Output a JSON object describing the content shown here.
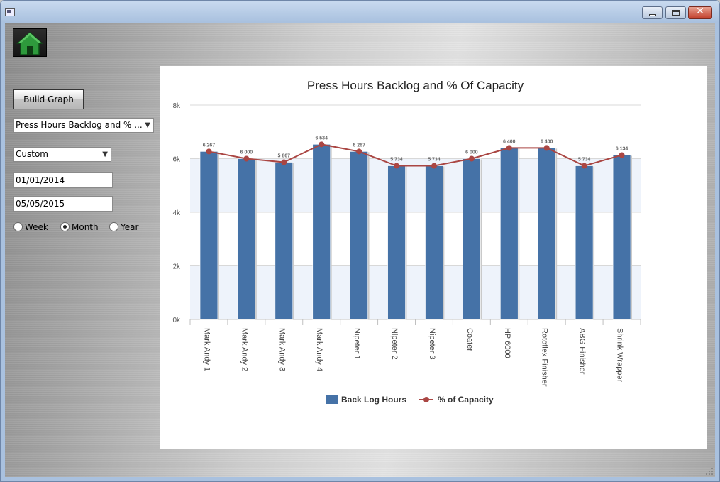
{
  "window": {
    "title": "",
    "controls": {
      "minimize": "minimize-icon",
      "maximize": "maximize-icon",
      "close": "✕"
    }
  },
  "sidebar": {
    "home_icon": "home-icon",
    "build_button_label": "Build Graph",
    "graph_select_value": "Press Hours Backlog and % ...",
    "range_select_value": "Custom",
    "start_date": "01/01/2014",
    "end_date": "05/05/2015",
    "period_options": [
      {
        "label": "Week",
        "selected": false
      },
      {
        "label": "Month",
        "selected": true
      },
      {
        "label": "Year",
        "selected": false
      }
    ]
  },
  "chart_data": {
    "type": "bar",
    "title": "Press Hours Backlog and % Of Capacity",
    "categories": [
      "Mark Andy 1",
      "Mark Andy 2",
      "Mark Andy 3",
      "Mark Andy 4",
      "Nipeter 1",
      "Nipeter 2",
      "Nipeter 3",
      "Coater",
      "HP 6000",
      "Rotoflex Finisher",
      "ABG Finisher",
      "Shrink Wrapper"
    ],
    "ylim": [
      0,
      8000
    ],
    "yticks": [
      0,
      2000,
      4000,
      6000,
      8000
    ],
    "ytick_labels": [
      "0k",
      "2k",
      "4k",
      "6k",
      "8k"
    ],
    "grid": true,
    "series": [
      {
        "name": "Back Log Hours",
        "kind": "bar",
        "color": "#4572a7",
        "values": [
          6267,
          6000,
          5867,
          6534,
          6267,
          5734,
          5734,
          6000,
          6400,
          6400,
          5734,
          6134
        ],
        "value_labels": [
          "6 267",
          "6 000",
          "5 867",
          "6 534",
          "6 267",
          "5 734",
          "5 734",
          "6 000",
          "6 400",
          "6 400",
          "5 734",
          "6 134"
        ]
      },
      {
        "name": "% of Capacity",
        "kind": "line",
        "color": "#aa4643",
        "values": [
          6267,
          6000,
          5867,
          6534,
          6267,
          5734,
          5734,
          6000,
          6400,
          6400,
          5734,
          6134
        ]
      }
    ],
    "legend_position": "bottom-center"
  }
}
